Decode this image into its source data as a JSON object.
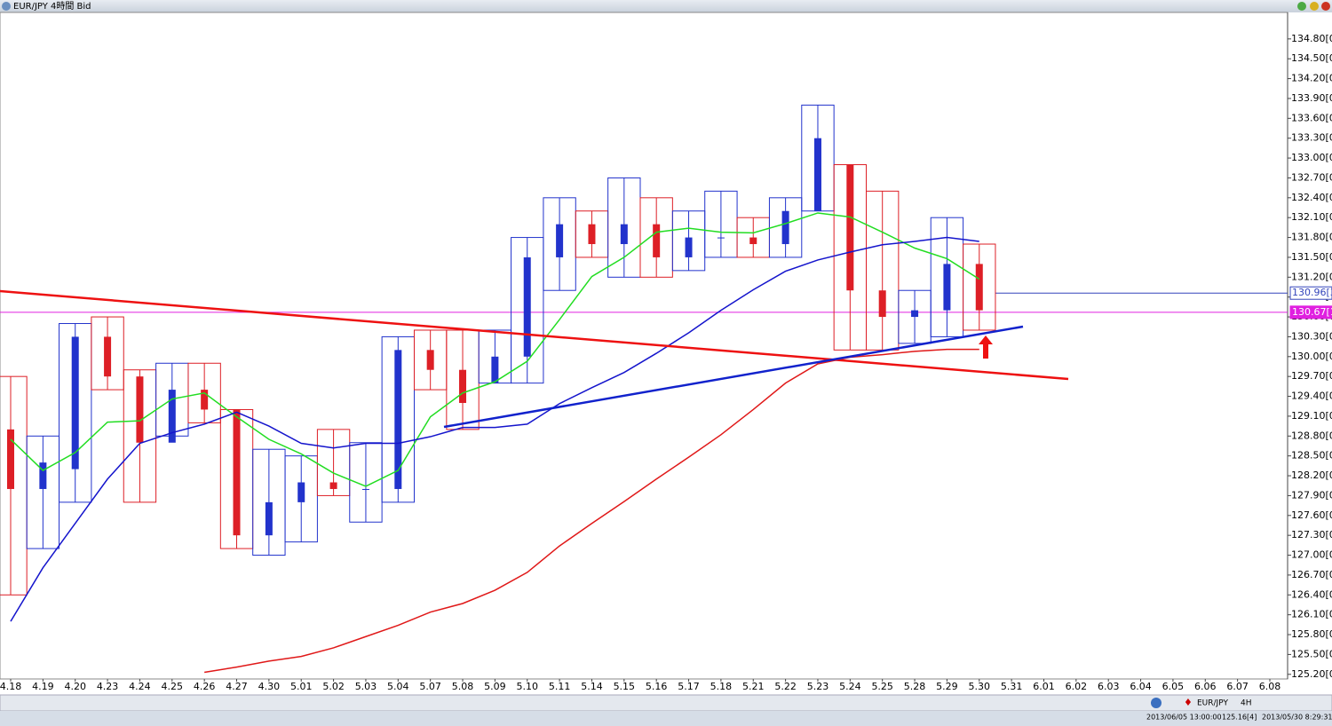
{
  "window_title": "EUR/JPY 4時間 Bid",
  "chart_data": {
    "type": "candlestick",
    "categories": [
      "4.18",
      "4.19",
      "4.20",
      "4.23",
      "4.24",
      "4.25",
      "4.26",
      "4.27",
      "4.30",
      "5.01",
      "5.02",
      "5.03",
      "5.04",
      "5.07",
      "5.08",
      "5.09",
      "5.10",
      "5.11",
      "5.14",
      "5.15",
      "5.16",
      "5.17",
      "5.18",
      "5.21",
      "5.22",
      "5.23",
      "5.24",
      "5.25",
      "5.28",
      "5.29",
      "5.30",
      "5.31",
      "6.01",
      "6.02",
      "6.03",
      "6.04",
      "6.05",
      "6.06",
      "6.07",
      "6.08"
    ],
    "open": [
      128.9,
      128.0,
      128.3,
      130.3,
      129.7,
      128.7,
      129.5,
      129.2,
      127.3,
      127.8,
      128.1,
      128.0,
      128.0,
      130.1,
      129.8,
      129.6,
      130.0,
      131.5,
      132.0,
      131.7,
      132.0,
      131.5,
      131.8,
      131.8,
      131.7,
      132.2,
      132.9,
      131.0,
      130.6,
      130.7,
      131.4,
      null,
      null,
      null,
      null,
      null,
      null,
      null,
      null,
      null
    ],
    "high": [
      129.7,
      128.8,
      130.5,
      130.6,
      129.8,
      129.9,
      129.9,
      129.2,
      128.6,
      128.5,
      128.9,
      128.7,
      130.3,
      130.4,
      130.4,
      130.4,
      131.8,
      132.4,
      132.2,
      132.7,
      132.4,
      132.2,
      132.5,
      132.1,
      132.4,
      133.8,
      132.9,
      132.5,
      131.0,
      132.1,
      131.7,
      null,
      null,
      null,
      null,
      null,
      null,
      null,
      null,
      null
    ],
    "low": [
      126.4,
      127.1,
      127.8,
      129.5,
      127.8,
      128.8,
      129.0,
      127.1,
      127.0,
      127.2,
      127.9,
      127.5,
      127.8,
      129.5,
      128.9,
      129.6,
      129.6,
      131.0,
      131.5,
      131.2,
      131.2,
      131.3,
      131.5,
      131.5,
      131.5,
      132.2,
      130.1,
      130.1,
      130.2,
      130.3,
      130.4,
      null,
      null,
      null,
      null,
      null,
      null,
      null,
      null,
      null
    ],
    "close": [
      128.0,
      128.4,
      130.3,
      129.7,
      128.7,
      129.5,
      129.2,
      127.3,
      127.8,
      128.1,
      128.0,
      128.0,
      130.1,
      129.8,
      129.3,
      130.0,
      131.5,
      132.0,
      131.7,
      132.0,
      131.5,
      131.8,
      131.8,
      131.7,
      132.2,
      133.3,
      131.0,
      130.6,
      130.7,
      131.4,
      130.7,
      null,
      null,
      null,
      null,
      null,
      null,
      null,
      null,
      null
    ],
    "up_color": "#2233cc",
    "down_color": "#dd1f26",
    "moving_averages": [
      {
        "color": "#22dd22",
        "values": [
          128.75,
          128.28,
          128.55,
          129.01,
          129.03,
          129.36,
          129.45,
          129.09,
          128.75,
          128.53,
          128.24,
          128.04,
          128.28,
          129.09,
          129.45,
          129.62,
          129.93,
          130.56,
          131.21,
          131.5,
          131.88,
          131.94,
          131.88,
          131.87,
          132.01,
          132.17,
          132.11,
          131.88,
          131.64,
          131.48,
          131.17,
          null,
          null,
          null,
          null,
          null,
          null,
          null,
          null,
          null
        ]
      },
      {
        "color": "#1414cc",
        "values": [
          126.0,
          126.81,
          127.48,
          128.15,
          128.69,
          128.85,
          128.98,
          129.16,
          128.95,
          128.69,
          128.62,
          128.69,
          128.69,
          128.79,
          128.93,
          128.93,
          128.98,
          129.29,
          129.53,
          129.76,
          130.05,
          130.36,
          130.7,
          131.01,
          131.29,
          131.46,
          131.58,
          131.69,
          131.74,
          131.8,
          131.74,
          null,
          null,
          null,
          null,
          null,
          null,
          null,
          null,
          null
        ]
      },
      {
        "color": "#e01818",
        "values": [
          null,
          null,
          null,
          null,
          null,
          null,
          125.23,
          125.31,
          125.4,
          125.47,
          125.6,
          125.77,
          125.94,
          126.14,
          126.27,
          126.47,
          126.74,
          127.14,
          127.48,
          127.81,
          128.15,
          128.48,
          128.82,
          129.2,
          129.6,
          129.89,
          129.99,
          130.03,
          130.08,
          130.11,
          130.11,
          null,
          null,
          null,
          null,
          null,
          null,
          null,
          null,
          null
        ]
      }
    ],
    "price_lines": [
      {
        "value": 130.96,
        "label": "130.96[3",
        "color": "#3344bb"
      },
      {
        "value": 130.67,
        "label": "130.67[1",
        "color": "#e020e0"
      }
    ],
    "ylim": [
      125.13,
      135.2
    ],
    "yticks": [
      {
        "value": 125.2,
        "label": "125.20[0"
      },
      {
        "value": 125.5,
        "label": "125.50[0"
      },
      {
        "value": 125.8,
        "label": "125.80[0"
      },
      {
        "value": 126.1,
        "label": "126.10[0"
      },
      {
        "value": 126.4,
        "label": "126.40[0"
      },
      {
        "value": 126.7,
        "label": "126.70[0"
      },
      {
        "value": 127.0,
        "label": "127.00[0"
      },
      {
        "value": 127.3,
        "label": "127.30[0"
      },
      {
        "value": 127.6,
        "label": "127.60[0"
      },
      {
        "value": 127.9,
        "label": "127.90[0"
      },
      {
        "value": 128.2,
        "label": "128.20[0"
      },
      {
        "value": 128.5,
        "label": "128.50[0"
      },
      {
        "value": 128.8,
        "label": "128.80[0"
      },
      {
        "value": 129.1,
        "label": "129.10[0"
      },
      {
        "value": 129.4,
        "label": "129.40[0"
      },
      {
        "value": 129.7,
        "label": "129.70[0"
      },
      {
        "value": 130.0,
        "label": "130.00[0"
      },
      {
        "value": 130.3,
        "label": "130.30[0"
      },
      {
        "value": 130.6,
        "label": "130.60[0"
      },
      {
        "value": 130.9,
        "label": "130.90[0"
      },
      {
        "value": 131.2,
        "label": "131.20[0"
      },
      {
        "value": 131.5,
        "label": "131.50[0"
      },
      {
        "value": 131.8,
        "label": "131.80[0"
      },
      {
        "value": 132.1,
        "label": "132.10[0"
      },
      {
        "value": 132.4,
        "label": "132.40[0"
      },
      {
        "value": 132.7,
        "label": "132.70[0"
      },
      {
        "value": 133.0,
        "label": "133.00[0"
      },
      {
        "value": 133.3,
        "label": "133.30[0"
      },
      {
        "value": 133.6,
        "label": "133.60[0"
      },
      {
        "value": 133.9,
        "label": "133.90[0"
      },
      {
        "value": 134.2,
        "label": "134.20[0"
      },
      {
        "value": 134.5,
        "label": "134.50[0"
      },
      {
        "value": 134.8,
        "label": "134.80[0"
      }
    ]
  },
  "status": {
    "symbol": "EUR/JPY",
    "timeframe": "4H",
    "time": "2013/06/05 13:00:00",
    "price": "125.16[4]",
    "clock": "2013/05/30 8:29:31"
  }
}
